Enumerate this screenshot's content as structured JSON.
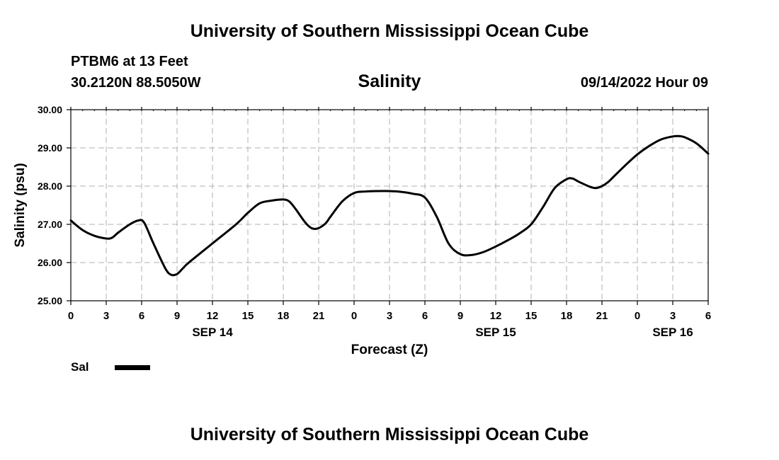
{
  "header": {
    "title": "University of Southern Mississippi Ocean Cube",
    "station": "PTBM6 at 13 Feet",
    "location": "30.2120N  88.5050W",
    "date_time": "09/14/2022 Hour 09"
  },
  "footer": {
    "title": "University of Southern Mississippi Ocean Cube"
  },
  "legend": {
    "label": "Sal"
  },
  "chart_data": {
    "type": "line",
    "title": "Salinity",
    "xlabel": "Forecast (Z)",
    "ylabel": "Salinity (psu)",
    "ylim": [
      25,
      30
    ],
    "xlim": [
      0,
      54
    ],
    "x_unit": "hours",
    "y_ticks": [
      "25.00",
      "26.00",
      "27.00",
      "28.00",
      "29.00",
      "30.00"
    ],
    "x_ticks": [
      {
        "x": 0,
        "label": "0"
      },
      {
        "x": 3,
        "label": "3"
      },
      {
        "x": 6,
        "label": "6"
      },
      {
        "x": 9,
        "label": "9"
      },
      {
        "x": 12,
        "label": "12"
      },
      {
        "x": 15,
        "label": "15"
      },
      {
        "x": 18,
        "label": "18"
      },
      {
        "x": 21,
        "label": "21"
      },
      {
        "x": 24,
        "label": "0"
      },
      {
        "x": 27,
        "label": "3"
      },
      {
        "x": 30,
        "label": "6"
      },
      {
        "x": 33,
        "label": "9"
      },
      {
        "x": 36,
        "label": "12"
      },
      {
        "x": 39,
        "label": "15"
      },
      {
        "x": 42,
        "label": "18"
      },
      {
        "x": 45,
        "label": "21"
      },
      {
        "x": 48,
        "label": "0"
      },
      {
        "x": 51,
        "label": "3"
      },
      {
        "x": 54,
        "label": "6"
      }
    ],
    "date_labels": [
      {
        "x": 12,
        "label": "SEP 14"
      },
      {
        "x": 36,
        "label": "SEP 15"
      },
      {
        "x": 51,
        "label": "SEP 16"
      }
    ],
    "grid": true,
    "series": [
      {
        "name": "Sal",
        "color": "#000000",
        "x": [
          0,
          1,
          2,
          3,
          3.5,
          4,
          5,
          5.7,
          6.2,
          7,
          8,
          8.5,
          9,
          9.5,
          10,
          12,
          14,
          15,
          16,
          17,
          18,
          18.5,
          19,
          20,
          20.7,
          21.5,
          22,
          23,
          24,
          25,
          26,
          27,
          28,
          29,
          30,
          31,
          32,
          33,
          34,
          35,
          36,
          37,
          38,
          39,
          40,
          41,
          42,
          42.5,
          43,
          44,
          44.5,
          45,
          45.5,
          46,
          47,
          48,
          49,
          50,
          51,
          51.5,
          52,
          53,
          54
        ],
        "y": [
          27.1,
          26.85,
          26.7,
          26.63,
          26.65,
          26.78,
          27.0,
          27.1,
          27.05,
          26.5,
          25.85,
          25.68,
          25.7,
          25.85,
          26.0,
          26.5,
          27.0,
          27.3,
          27.55,
          27.62,
          27.65,
          27.6,
          27.42,
          27.0,
          26.88,
          27.0,
          27.2,
          27.6,
          27.82,
          27.86,
          27.87,
          27.87,
          27.85,
          27.8,
          27.7,
          27.2,
          26.5,
          26.22,
          26.2,
          26.28,
          26.42,
          26.58,
          26.76,
          27.0,
          27.45,
          27.95,
          28.18,
          28.2,
          28.12,
          27.98,
          27.95,
          28.0,
          28.1,
          28.25,
          28.55,
          28.83,
          29.05,
          29.22,
          29.3,
          29.31,
          29.28,
          29.12,
          28.85
        ]
      }
    ]
  }
}
